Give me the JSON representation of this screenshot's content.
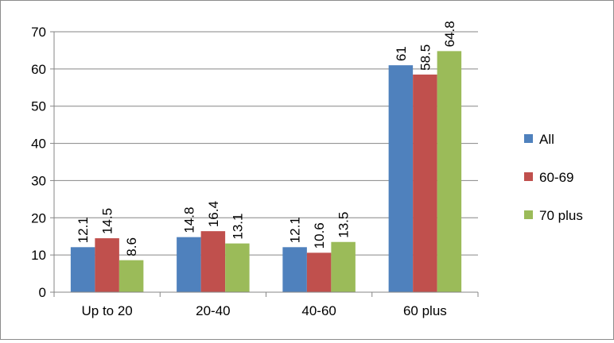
{
  "chart_data": {
    "type": "bar",
    "categories": [
      "Up to 20",
      "20-40",
      "40-60",
      "60 plus"
    ],
    "series": [
      {
        "name": "All",
        "color": "#4F81BD",
        "values": [
          12.1,
          14.8,
          12.1,
          61
        ],
        "labels": [
          "12.1",
          "14.8",
          "12.1",
          "61"
        ]
      },
      {
        "name": "60-69",
        "color": "#C0504D",
        "values": [
          14.5,
          16.4,
          10.6,
          58.5
        ],
        "labels": [
          "14.5",
          "16.4",
          "10.6",
          "58.5"
        ]
      },
      {
        "name": "70 plus",
        "color": "#9BBB59",
        "values": [
          8.6,
          13.1,
          13.5,
          64.8
        ],
        "labels": [
          "8.6",
          "13.1",
          "13.5",
          "64.8"
        ]
      }
    ],
    "ylim": [
      0,
      70
    ],
    "yticks": [
      0,
      10,
      20,
      30,
      40,
      50,
      60,
      70
    ],
    "grid": true,
    "legend": "right",
    "title": "",
    "xlabel": "",
    "ylabel": ""
  }
}
